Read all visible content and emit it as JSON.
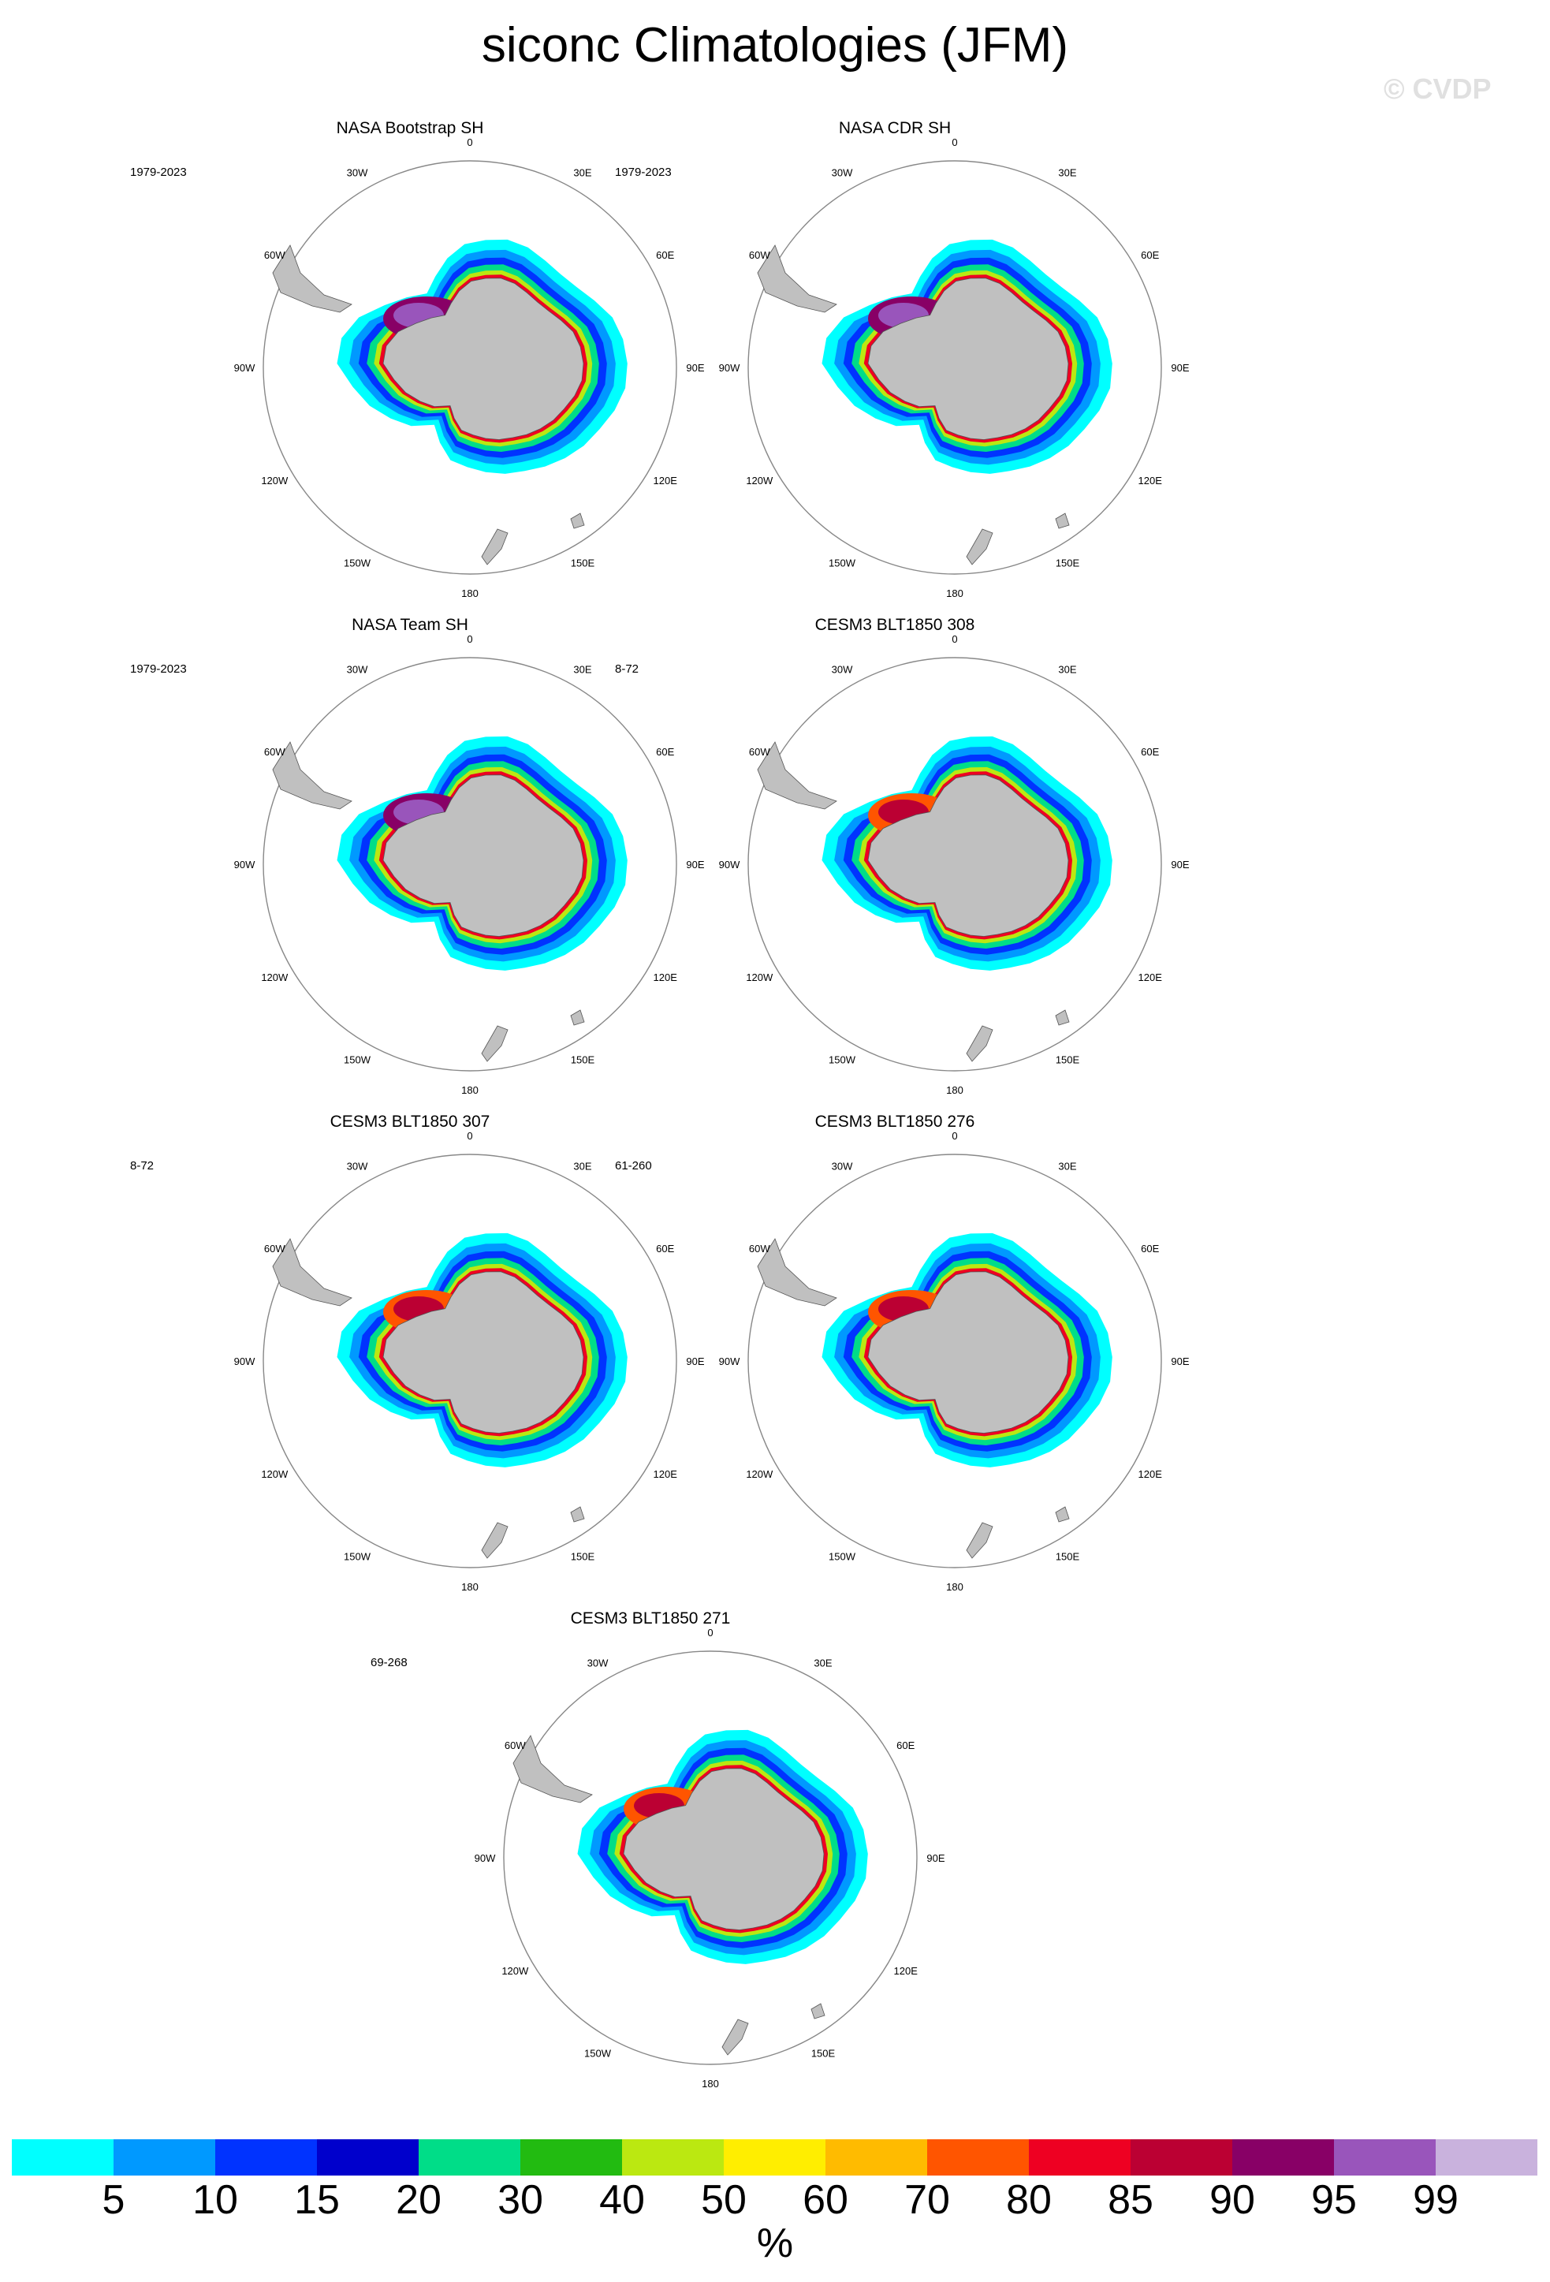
{
  "title": "siconc Climatologies (JFM)",
  "watermark": "© CVDP",
  "lon_labels": [
    "0",
    "30E",
    "60E",
    "90E",
    "120E",
    "150E",
    "180",
    "150W",
    "120W",
    "90W",
    "60W",
    "30W"
  ],
  "colors": {
    "land": "#c0c0c0",
    "circle": "#888888",
    "colorbar": [
      "#00ffff",
      "#0099ff",
      "#0033ff",
      "#0000cc",
      "#00dd88",
      "#22bb11",
      "#bbe811",
      "#ffee00",
      "#ffbb00",
      "#ff5500",
      "#ee0022",
      "#bb0033",
      "#880066",
      "#9955bb",
      "#c9b2dd"
    ]
  },
  "chart_data": {
    "type": "heatmap",
    "title": "siconc Climatologies (JFM)",
    "projection": "south polar stereographic",
    "colorbar": {
      "labels": [
        "5",
        "10",
        "15",
        "20",
        "30",
        "40",
        "50",
        "60",
        "70",
        "80",
        "85",
        "90",
        "95",
        "99"
      ],
      "unit": "%"
    },
    "panels": [
      {
        "title": "NASA Bootstrap SH",
        "period": "1979-2023"
      },
      {
        "title": "NASA CDR SH",
        "period": "1979-2023"
      },
      {
        "title": "NASA Team SH",
        "period": "1979-2023"
      },
      {
        "title": "CESM3 BLT1850 308",
        "period": "8-72"
      },
      {
        "title": "CESM3 BLT1850 307",
        "period": "8-72"
      },
      {
        "title": "CESM3 BLT1850 276",
        "period": "61-260"
      },
      {
        "title": "CESM3 BLT1850 271",
        "period": "69-268"
      }
    ]
  }
}
